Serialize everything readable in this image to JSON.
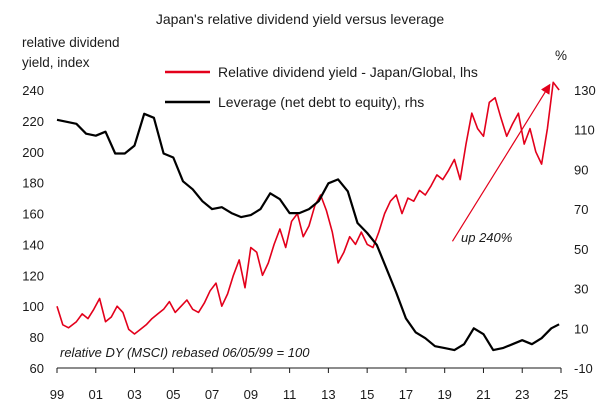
{
  "chart_data": {
    "type": "line",
    "title": "Japan's relative dividend yield versus leverage",
    "ylabel_left": [
      "relative dividend",
      "yield, index"
    ],
    "ylabel_right": "%",
    "x_ticks": [
      "99",
      "01",
      "03",
      "05",
      "07",
      "09",
      "11",
      "13",
      "15",
      "17",
      "19",
      "21",
      "23",
      "25"
    ],
    "x_tick_years": [
      1999,
      2001,
      2003,
      2005,
      2007,
      2009,
      2011,
      2013,
      2015,
      2017,
      2019,
      2021,
      2023,
      2025
    ],
    "xlim": [
      1999,
      2025
    ],
    "y_left_ticks": [
      "60",
      "80",
      "100",
      "120",
      "140",
      "160",
      "180",
      "200",
      "220",
      "240"
    ],
    "ylim_left": [
      60,
      240
    ],
    "y_right_ticks": [
      "-10",
      "10",
      "30",
      "50",
      "70",
      "90",
      "110",
      "130"
    ],
    "ylim_right": [
      -10,
      130
    ],
    "grid": false,
    "legend_position": "top",
    "series": [
      {
        "name": "Relative dividend yield - Japan/Global, lhs",
        "axis": "left",
        "color": "#e3001b",
        "x": [
          1999.0,
          1999.3,
          1999.6,
          2000.0,
          2000.3,
          2000.6,
          2000.9,
          2001.2,
          2001.5,
          2001.8,
          2002.1,
          2002.4,
          2002.7,
          2003.0,
          2003.3,
          2003.6,
          2003.9,
          2004.2,
          2004.5,
          2004.8,
          2005.1,
          2005.4,
          2005.7,
          2006.0,
          2006.3,
          2006.6,
          2006.9,
          2007.2,
          2007.5,
          2007.8,
          2008.1,
          2008.4,
          2008.7,
          2009.0,
          2009.3,
          2009.6,
          2009.9,
          2010.2,
          2010.5,
          2010.8,
          2011.1,
          2011.4,
          2011.7,
          2012.0,
          2012.3,
          2012.6,
          2012.9,
          2013.2,
          2013.5,
          2013.8,
          2014.1,
          2014.4,
          2014.7,
          2015.0,
          2015.3,
          2015.6,
          2015.9,
          2016.2,
          2016.5,
          2016.8,
          2017.1,
          2017.4,
          2017.7,
          2018.0,
          2018.3,
          2018.6,
          2018.9,
          2019.2,
          2019.5,
          2019.8,
          2020.1,
          2020.4,
          2020.7,
          2021.0,
          2021.3,
          2021.6,
          2021.9,
          2022.2,
          2022.5,
          2022.8,
          2023.1,
          2023.4,
          2023.7,
          2024.0,
          2024.3,
          2024.6,
          2024.9
        ],
        "values": [
          100,
          88,
          86,
          90,
          95,
          92,
          98,
          105,
          90,
          93,
          100,
          96,
          85,
          82,
          85,
          88,
          92,
          95,
          98,
          103,
          96,
          100,
          104,
          98,
          96,
          102,
          110,
          115,
          100,
          108,
          120,
          130,
          112,
          138,
          135,
          120,
          128,
          140,
          150,
          138,
          155,
          160,
          145,
          152,
          165,
          172,
          162,
          148,
          128,
          135,
          145,
          140,
          148,
          140,
          138,
          148,
          160,
          168,
          172,
          160,
          170,
          168,
          175,
          172,
          178,
          185,
          182,
          188,
          195,
          182,
          205,
          225,
          215,
          210,
          232,
          235,
          222,
          210,
          218,
          225,
          205,
          215,
          200,
          192,
          215,
          245,
          240
        ]
      },
      {
        "name": "Leverage (net debt to equity), rhs",
        "axis": "right",
        "color": "#000000",
        "x": [
          1999.0,
          1999.5,
          2000.0,
          2000.5,
          2001.0,
          2001.5,
          2002.0,
          2002.5,
          2003.0,
          2003.5,
          2004.0,
          2004.5,
          2005.0,
          2005.5,
          2006.0,
          2006.5,
          2007.0,
          2007.5,
          2008.0,
          2008.5,
          2009.0,
          2009.5,
          2010.0,
          2010.5,
          2011.0,
          2011.5,
          2012.0,
          2012.5,
          2013.0,
          2013.5,
          2014.0,
          2014.5,
          2015.0,
          2015.5,
          2016.0,
          2016.5,
          2017.0,
          2017.5,
          2018.0,
          2018.5,
          2019.0,
          2019.5,
          2020.0,
          2020.5,
          2021.0,
          2021.5,
          2022.0,
          2022.5,
          2023.0,
          2023.5,
          2024.0,
          2024.5,
          2024.9
        ],
        "values": [
          115,
          114,
          113,
          108,
          107,
          109,
          98,
          98,
          102,
          118,
          116,
          98,
          96,
          84,
          80,
          74,
          70,
          71,
          68,
          66,
          67,
          70,
          78,
          75,
          68,
          68,
          70,
          74,
          83,
          85,
          79,
          63,
          58,
          52,
          40,
          28,
          15,
          8,
          5,
          1,
          0,
          -1,
          2,
          10,
          7,
          -1,
          0,
          2,
          4,
          2,
          5,
          10,
          12
        ]
      }
    ],
    "annotations": [
      {
        "text": "up 240%",
        "arrow_from": [
          2019.4,
          142
        ],
        "arrow_to": [
          2024.4,
          243
        ]
      },
      {
        "text": "relative DY  (MSCI) rebased 06/05/99 = 100"
      }
    ]
  }
}
